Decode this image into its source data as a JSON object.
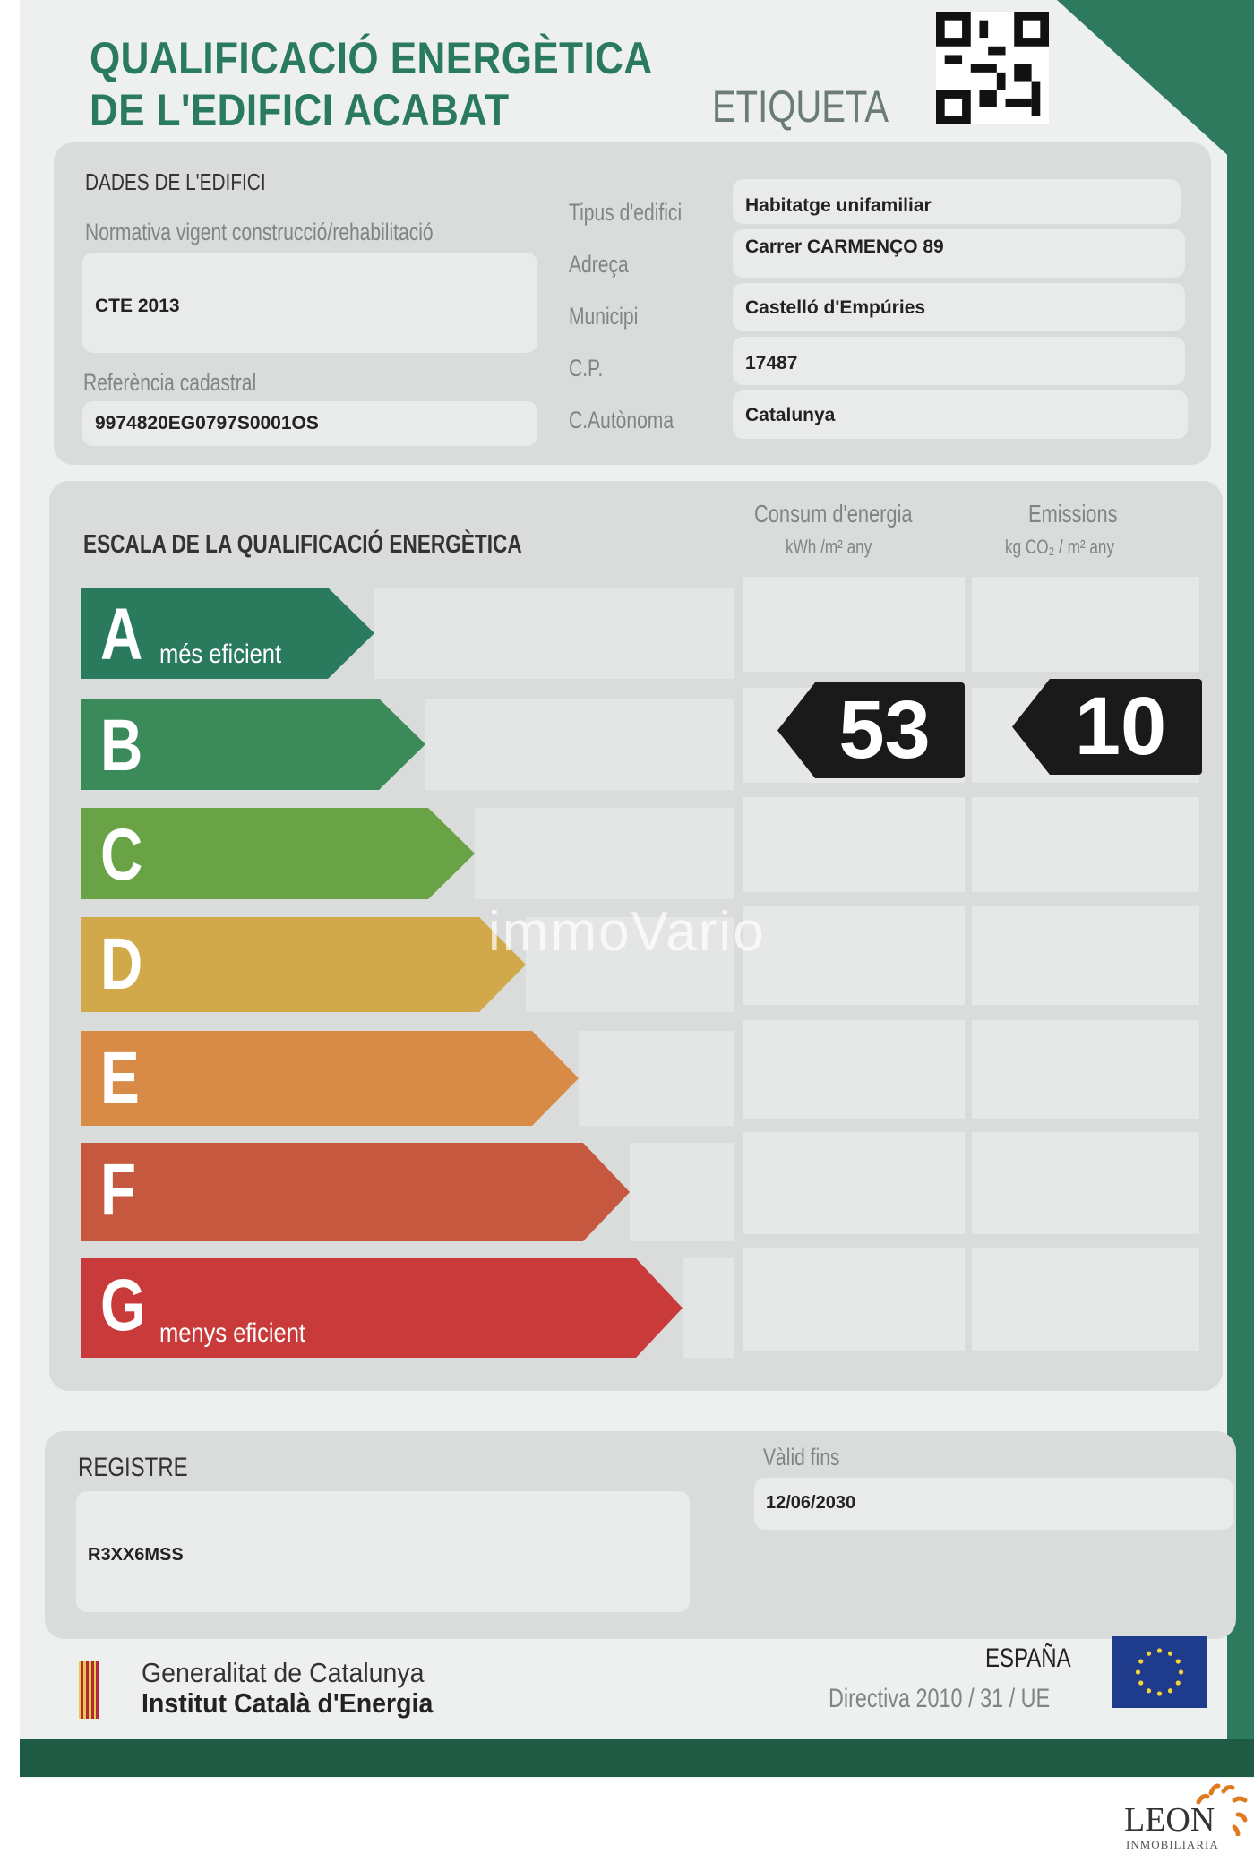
{
  "header": {
    "title_line1": "QUALIFICACIÓ ENERGÈTICA",
    "title_line2": "DE L'EDIFICI ACABAT",
    "label": "ETIQUETA",
    "qr_icon": "qr-code-icon"
  },
  "building": {
    "section_title": "DADES DE L'EDIFICI",
    "normativa_label": "Normativa vigent construcció/rehabilitació",
    "normativa_value": "CTE 2013",
    "cadastral_label": "Referència cadastral",
    "cadastral_value": "9974820EG0797S0001OS",
    "fields": [
      {
        "label": "Tipus d'edifici",
        "value": "Habitatge unifamiliar"
      },
      {
        "label": "Adreça",
        "value": "Carrer CARMENÇO 89"
      },
      {
        "label": "Municipi",
        "value": "Castelló d'Empúries"
      },
      {
        "label": "C.P.",
        "value": "17487"
      },
      {
        "label": "C.Autònoma",
        "value": "Catalunya"
      }
    ]
  },
  "scale": {
    "section_title": "ESCALA DE LA QUALIFICACIÓ ENERGÈTICA",
    "consum_label": "Consum d'energia",
    "consum_unit": "kWh /m² any",
    "emissions_label": "Emissions",
    "emissions_unit": "kg CO₂ / m² any",
    "classes": [
      {
        "letter": "A",
        "sub": "més eficient",
        "color": "#2a7a5e"
      },
      {
        "letter": "B",
        "sub": "",
        "color": "#3a8a5a"
      },
      {
        "letter": "C",
        "sub": "",
        "color": "#6aa346"
      },
      {
        "letter": "D",
        "sub": "",
        "color": "#d2a94a"
      },
      {
        "letter": "E",
        "sub": "",
        "color": "#d88b46"
      },
      {
        "letter": "F",
        "sub": "",
        "color": "#c5583e"
      },
      {
        "letter": "G",
        "sub": "menys eficient",
        "color": "#c93a3a"
      }
    ],
    "rating_class": "B",
    "consum_value": "53",
    "emissions_value": "10",
    "watermark": "immoVario"
  },
  "registry": {
    "label": "REGISTRE",
    "value": "R3XX6MSS",
    "valid_label": "Vàlid fins",
    "valid_value": "12/06/2030"
  },
  "footer": {
    "org_line1": "Generalitat de Catalunya",
    "org_line2": "Institut Català d'Energia",
    "country": "ESPAÑA",
    "directive": "Directiva 2010 / 31 / UE"
  },
  "brand": {
    "name": "LEON",
    "sub": "INMOBILIARIA",
    "accent": "#e07a1f"
  }
}
